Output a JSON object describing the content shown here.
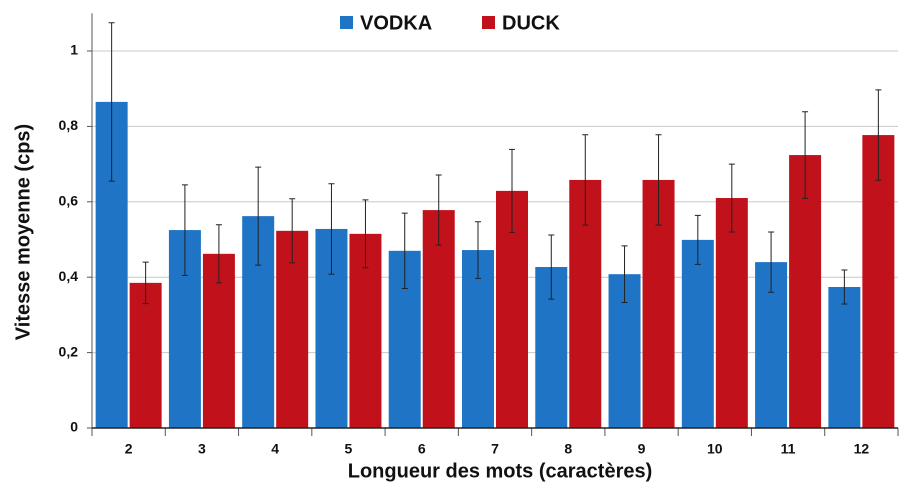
{
  "chart_data": {
    "type": "bar",
    "xlabel": "Longueur des mots (caractères)",
    "ylabel": "Vitesse moyenne (cps)",
    "categories": [
      "2",
      "3",
      "4",
      "5",
      "6",
      "7",
      "8",
      "9",
      "10",
      "11",
      "12"
    ],
    "series": [
      {
        "name": "VODKA",
        "color": "#1f74c6",
        "values": [
          0.865,
          0.525,
          0.562,
          0.528,
          0.47,
          0.472,
          0.427,
          0.408,
          0.499,
          0.44,
          0.374
        ],
        "errors": [
          0.21,
          0.12,
          0.13,
          0.12,
          0.1,
          0.075,
          0.085,
          0.075,
          0.065,
          0.08,
          0.045
        ]
      },
      {
        "name": "DUCK",
        "color": "#c1121c",
        "values": [
          0.385,
          0.462,
          0.523,
          0.515,
          0.578,
          0.629,
          0.658,
          0.658,
          0.61,
          0.724,
          0.777
        ],
        "errors": [
          0.055,
          0.077,
          0.085,
          0.09,
          0.093,
          0.11,
          0.12,
          0.12,
          0.09,
          0.115,
          0.12
        ]
      }
    ],
    "ylim": [
      0,
      1.1
    ],
    "yticks": [
      0,
      {
        "value": 0.2,
        "label": "0,2"
      },
      {
        "value": 0.4,
        "label": "0,4"
      },
      {
        "value": 0.6,
        "label": "0,6"
      },
      {
        "value": 0.8,
        "label": "0,8"
      },
      1
    ],
    "grid": true,
    "legend": "top"
  }
}
